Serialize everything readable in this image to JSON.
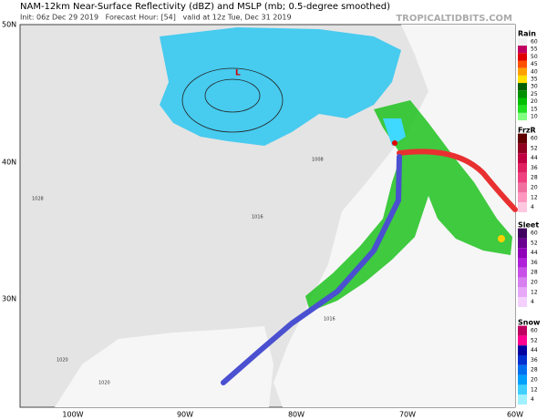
{
  "header": {
    "title": "NAM-12km Near-Surface Reflectivity (dBZ) and MSLP (mb; 0.5-degree smoothed)",
    "subtitle": "Init: 06z Dec 29 2019   Forecast Hour: [54]   valid at 12z Tue, Dec 31 2019",
    "site": "TROPICALTIDBITS.COM"
  },
  "map": {
    "lat_labels": [
      "50N",
      "40N",
      "30N"
    ],
    "lon_labels": [
      "100W",
      "90W",
      "80W",
      "70W",
      "60W"
    ],
    "isobar_labels": [
      "1008",
      "1016",
      "1020",
      "1028",
      "1020",
      "1016"
    ]
  },
  "legends": [
    {
      "title": "Rain",
      "labels": [
        "60",
        "55",
        "50",
        "45",
        "40",
        "35",
        "30",
        "25",
        "20",
        "15",
        "10"
      ],
      "colors": [
        "#f0f0f0",
        "#c00060",
        "#e00000",
        "#ff5000",
        "#ffa000",
        "#ffe000",
        "#006000",
        "#009000",
        "#00c000",
        "#20e020",
        "#80ff80"
      ]
    },
    {
      "title": "FrzR",
      "labels": [
        "60",
        "52",
        "44",
        "36",
        "28",
        "20",
        "12",
        "4"
      ],
      "colors": [
        "#600000",
        "#900020",
        "#c00040",
        "#e02060",
        "#f04080",
        "#f070a0",
        "#ff98c0",
        "#ffc8e0"
      ]
    },
    {
      "title": "Sleet",
      "labels": [
        "60",
        "52",
        "44",
        "36",
        "28",
        "20",
        "12",
        "4"
      ],
      "colors": [
        "#400060",
        "#6a0090",
        "#9000b8",
        "#b020d8",
        "#c850e8",
        "#d880f0",
        "#e8a8f8",
        "#f4d0ff"
      ]
    },
    {
      "title": "Snow",
      "labels": [
        "60",
        "52",
        "44",
        "36",
        "28",
        "20",
        "12",
        "4"
      ],
      "colors": [
        "#c00060",
        "#ff0090",
        "#0000a0",
        "#0030d0",
        "#0070f0",
        "#00a0ff",
        "#40d0ff",
        "#a0f0ff"
      ]
    }
  ]
}
